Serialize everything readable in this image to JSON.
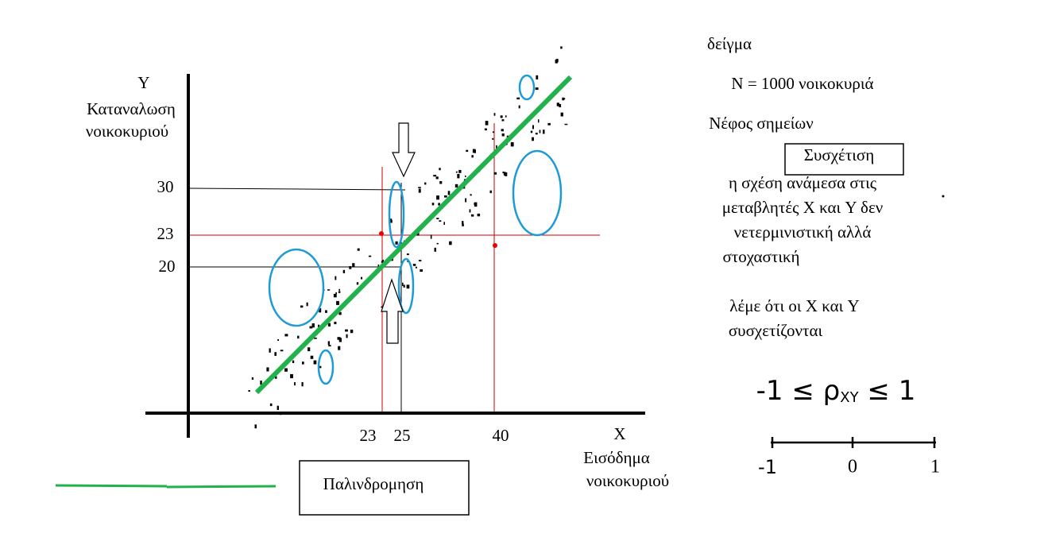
{
  "axes": {
    "y_label": "Y",
    "y_title_1": "Καταναλωση",
    "y_title_2": "νοικοκυριού",
    "x_label": "X",
    "x_title_1": "Εισόδημα",
    "x_title_2": "νοικοκυριού",
    "y_ticks": [
      "30",
      "23",
      "20"
    ],
    "x_ticks": [
      "23",
      "25",
      "40"
    ]
  },
  "legend": {
    "label": "Παλινδρομηση"
  },
  "notes": {
    "sample": "δείγμα",
    "n": "N = 1000 νοικοκυριά",
    "cloud": "Νέφος σημείων",
    "box": "Συσχέτιση",
    "paragraph_1": [
      "η σχέση ανάμεσα στις",
      "μεταβλητές X και Y δεν",
      "νετερμινιστική αλλά",
      "στοχαστική"
    ],
    "paragraph_2": [
      "λέμε ότι οι X και Y",
      "συσχετίζονται"
    ]
  },
  "formula": {
    "left": "-1 ≤ ",
    "rho": "ρ",
    "sub": "XY",
    "right": " ≤ 1"
  },
  "number_line": [
    "-1",
    "0",
    "1"
  ]
}
